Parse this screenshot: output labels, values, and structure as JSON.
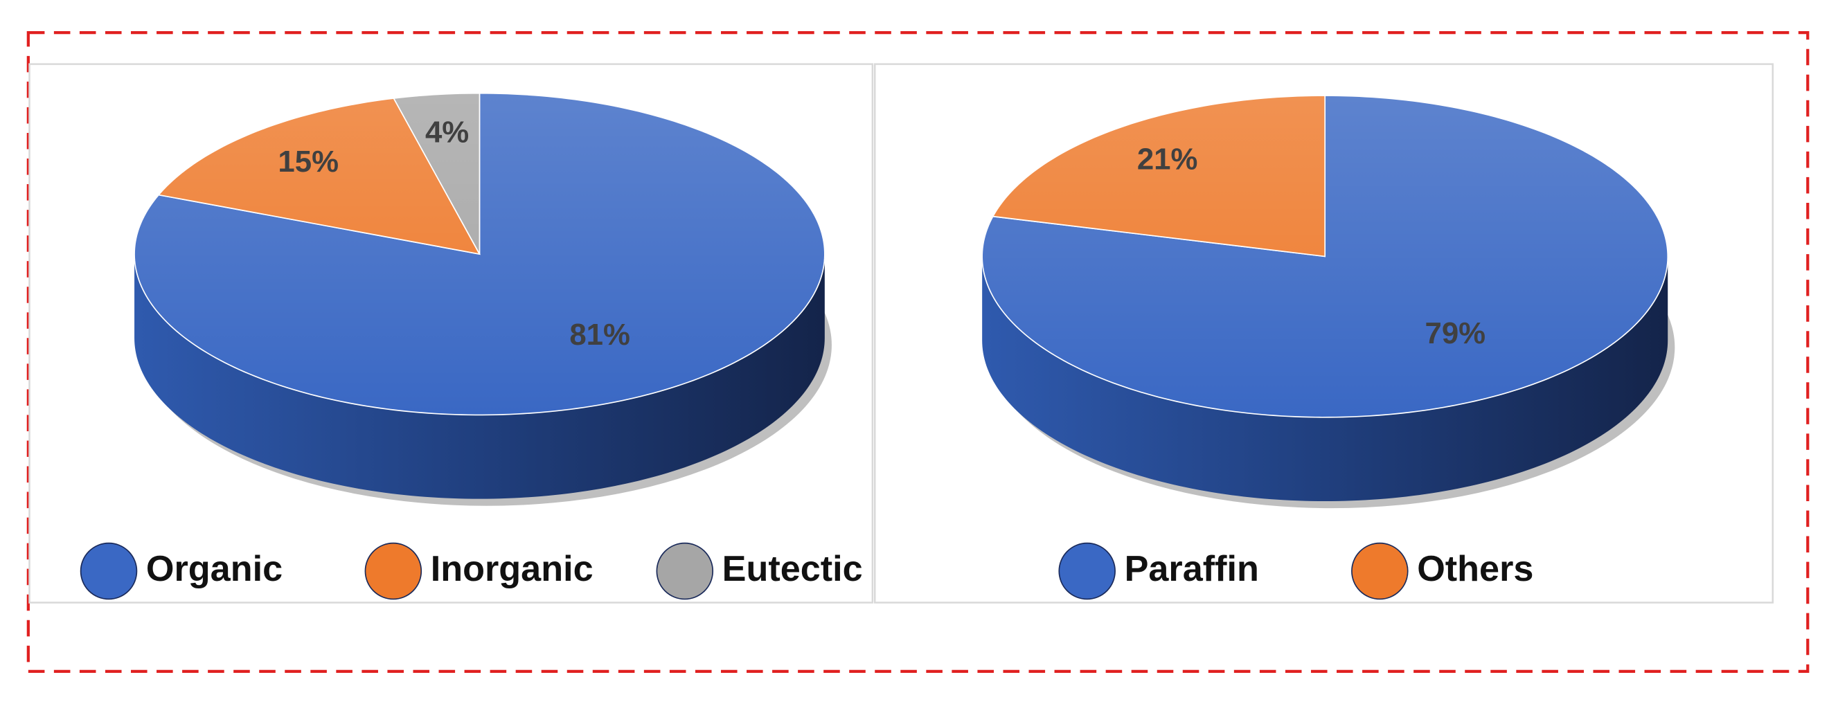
{
  "chart_data": [
    {
      "type": "pie",
      "categories": [
        "Organic",
        "Inorganic",
        "Eutectic"
      ],
      "values": [
        81,
        15,
        4
      ],
      "value_labels": [
        "81%",
        "15%",
        "4%"
      ],
      "colors": [
        "#3a68c4",
        "#ee7a2c",
        "#a6a6a6"
      ],
      "legend": "bottom"
    },
    {
      "type": "pie",
      "categories": [
        "Paraffin",
        "Others"
      ],
      "values": [
        79,
        21
      ],
      "value_labels": [
        "79%",
        "21%"
      ],
      "colors": [
        "#3a68c4",
        "#ee7a2c"
      ],
      "legend": "bottom"
    }
  ]
}
